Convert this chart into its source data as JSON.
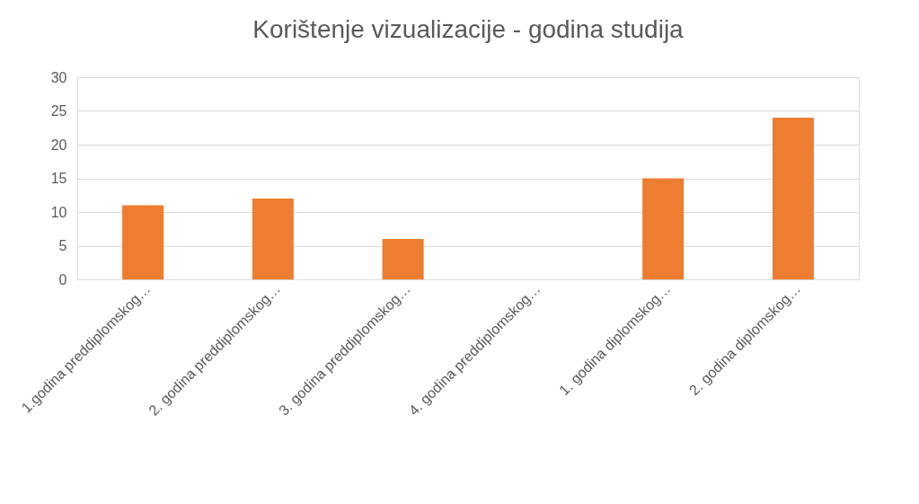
{
  "chart_data": {
    "type": "bar",
    "title": "Korištenje vizualizacije - godina studija",
    "categories": [
      "1.godina preddiplomskog…",
      "2. godina preddiplomskog…",
      "3. godina preddiplomskog…",
      "4. godina preddiplomskog…",
      "1. godina diplomskog…",
      "2. godina diplomskog…"
    ],
    "values": [
      11,
      12,
      6,
      0,
      15,
      24
    ],
    "color": "#ed7d31",
    "ylim": [
      0,
      30
    ],
    "yticks": [
      0,
      5,
      10,
      15,
      20,
      25,
      30
    ],
    "grid": "y"
  }
}
